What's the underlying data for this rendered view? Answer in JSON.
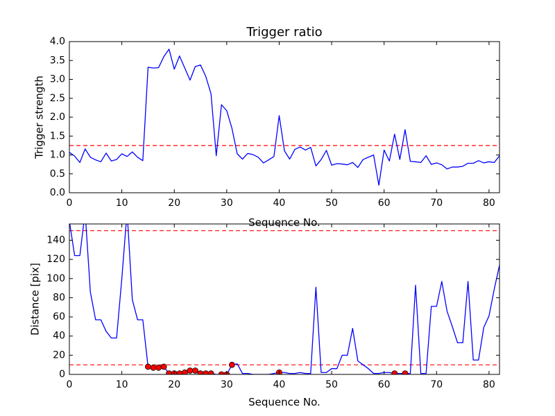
{
  "chart_data": [
    {
      "type": "line",
      "title": "Trigger ratio",
      "xlabel": "Sequence No.",
      "ylabel": "Trigger strength",
      "xlim": [
        0,
        82
      ],
      "ylim": [
        0,
        4.0
      ],
      "xticks": [
        0,
        10,
        20,
        30,
        40,
        50,
        60,
        70,
        80
      ],
      "yticks": [
        0.0,
        0.5,
        1.0,
        1.5,
        2.0,
        2.5,
        3.0,
        3.5,
        4.0
      ],
      "ytick_labels": [
        "0.0",
        "0.5",
        "1.0",
        "1.5",
        "2.0",
        "2.5",
        "3.0",
        "3.5",
        "4.0"
      ],
      "grid": false,
      "series": [
        {
          "color": "#0000ff",
          "x": [
            0,
            1,
            2,
            3,
            4,
            5,
            6,
            7,
            8,
            9,
            10,
            11,
            12,
            13,
            14,
            15,
            16,
            17,
            18,
            19,
            20,
            21,
            22,
            23,
            24,
            25,
            26,
            27,
            28,
            29,
            30,
            31,
            32,
            33,
            34,
            35,
            36,
            37,
            38,
            39,
            40,
            41,
            42,
            43,
            44,
            45,
            46,
            47,
            48,
            49,
            50,
            51,
            52,
            53,
            54,
            55,
            56,
            57,
            58,
            59,
            60,
            61,
            62,
            63,
            64,
            65,
            66,
            67,
            68,
            69,
            70,
            71,
            72,
            73,
            74,
            75,
            76,
            77,
            78,
            79,
            80,
            81,
            82
          ],
          "y": [
            1.07,
            0.97,
            0.8,
            1.16,
            0.94,
            0.87,
            0.82,
            1.05,
            0.84,
            0.88,
            1.03,
            0.96,
            1.08,
            0.94,
            0.85,
            3.32,
            3.3,
            3.31,
            3.6,
            3.8,
            3.27,
            3.62,
            3.3,
            2.98,
            3.34,
            3.38,
            3.08,
            2.62,
            0.98,
            2.33,
            2.17,
            1.7,
            1.03,
            0.89,
            1.04,
            1.01,
            0.94,
            0.79,
            0.87,
            0.96,
            2.04,
            1.11,
            0.89,
            1.15,
            1.21,
            1.13,
            1.2,
            0.71,
            0.88,
            1.12,
            0.73,
            0.77,
            0.76,
            0.74,
            0.8,
            0.67,
            0.88,
            0.94,
            1.0,
            0.2,
            1.13,
            0.84,
            1.55,
            0.88,
            1.67,
            0.83,
            0.82,
            0.8,
            0.98,
            0.75,
            0.79,
            0.74,
            0.63,
            0.68,
            0.68,
            0.7,
            0.78,
            0.78,
            0.85,
            0.79,
            0.82,
            0.8,
            0.98
          ]
        }
      ],
      "reference_lines": [
        {
          "y": 1.25,
          "color": "#ff0000",
          "style": "dashed"
        }
      ]
    },
    {
      "type": "line",
      "title": "",
      "xlabel": "Sequence No.",
      "ylabel": "Distance [pix]",
      "xlim": [
        0,
        82
      ],
      "ylim": [
        0,
        157
      ],
      "xticks": [
        0,
        10,
        20,
        30,
        40,
        50,
        60,
        70,
        80
      ],
      "yticks": [
        0,
        20,
        40,
        60,
        80,
        100,
        120,
        140
      ],
      "ytick_labels": [
        "0",
        "20",
        "40",
        "60",
        "80",
        "100",
        "120",
        "140"
      ],
      "grid": false,
      "series": [
        {
          "color": "#0000ff",
          "x": [
            0,
            1,
            2,
            3,
            4,
            5,
            6,
            7,
            8,
            9,
            10,
            11,
            12,
            13,
            14,
            15,
            16,
            17,
            18,
            19,
            20,
            21,
            22,
            23,
            24,
            25,
            26,
            27,
            28,
            29,
            30,
            31,
            32,
            33,
            34,
            35,
            36,
            37,
            38,
            39,
            40,
            41,
            42,
            43,
            44,
            45,
            46,
            47,
            48,
            49,
            50,
            51,
            52,
            53,
            54,
            55,
            56,
            57,
            58,
            59,
            60,
            61,
            62,
            63,
            64,
            65,
            66,
            67,
            68,
            69,
            70,
            71,
            72,
            73,
            74,
            75,
            76,
            77,
            78,
            79,
            80,
            81,
            82
          ],
          "y": [
            160,
            124,
            124,
            170,
            86,
            57,
            57,
            45,
            38,
            38,
            100,
            170,
            78,
            57,
            57,
            8,
            7,
            7,
            8,
            1,
            1,
            1,
            2,
            4,
            4,
            1,
            1,
            1,
            0,
            0,
            0,
            10,
            11,
            1,
            1,
            0,
            0,
            0,
            0,
            1,
            2,
            2,
            1,
            1,
            2,
            1,
            1,
            91,
            2,
            2,
            6,
            6,
            20,
            20,
            48,
            14,
            10,
            6,
            1,
            1,
            2,
            2,
            1,
            1,
            1,
            1,
            93,
            1,
            1,
            71,
            71,
            97,
            66,
            50,
            33,
            33,
            97,
            15,
            15,
            49,
            61,
            89,
            114
          ]
        }
      ],
      "markers": {
        "color": "#ff0000",
        "edge": "#000000",
        "x": [
          15,
          16,
          17,
          18,
          19,
          20,
          21,
          22,
          23,
          24,
          25,
          26,
          27,
          29,
          30,
          31,
          40,
          62,
          64
        ],
        "y": [
          8,
          7,
          7,
          8,
          1,
          1,
          1,
          2,
          4,
          4,
          1,
          1,
          1,
          0,
          0,
          10,
          2,
          1,
          1
        ]
      },
      "reference_lines": [
        {
          "y": 150,
          "color": "#ff0000",
          "style": "dashed"
        },
        {
          "y": 10,
          "color": "#ff0000",
          "style": "dashed"
        }
      ]
    }
  ]
}
